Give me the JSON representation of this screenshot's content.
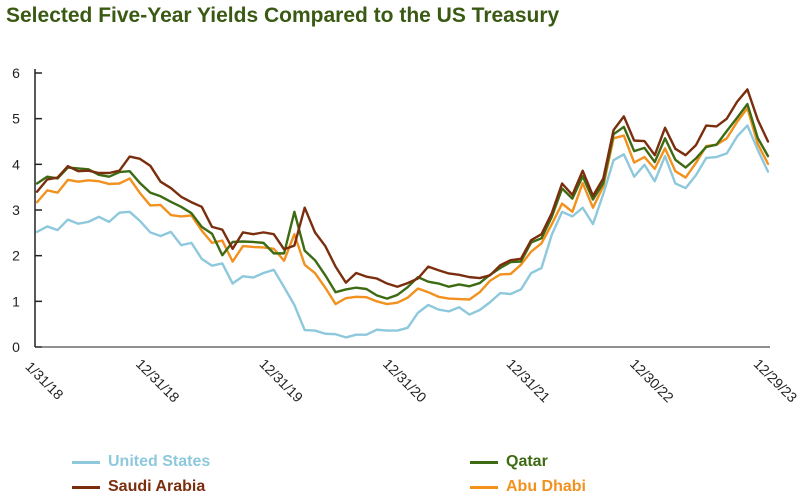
{
  "title": "Selected Five-Year Yields Compared to the US Treasury",
  "colors": {
    "title": "#3a5a14",
    "axis": "#222222",
    "tick_text": "#222222"
  },
  "chart_data": {
    "type": "line",
    "title": "Selected Five-Year Yields Compared to the US Treasury",
    "xlabel": "",
    "ylabel": "",
    "ylim": [
      0,
      6
    ],
    "yticks": [
      0,
      1,
      2,
      3,
      4,
      5,
      6
    ],
    "grid": false,
    "legend_position": "bottom",
    "x_tick_labels": [
      "1/31/18",
      "12/31/18",
      "12/31/19",
      "12/31/20",
      "12/31/21",
      "12/30/22",
      "12/29/23"
    ],
    "x_tick_index": [
      0,
      11,
      23,
      35,
      47,
      59,
      71
    ],
    "series": [
      {
        "name": "United States",
        "color": "#8ec8dc",
        "values": [
          2.52,
          2.64,
          2.56,
          2.79,
          2.7,
          2.74,
          2.85,
          2.74,
          2.94,
          2.96,
          2.76,
          2.51,
          2.43,
          2.52,
          2.23,
          2.28,
          1.93,
          1.78,
          1.83,
          1.39,
          1.55,
          1.52,
          1.62,
          1.69,
          1.31,
          0.92,
          0.37,
          0.36,
          0.29,
          0.28,
          0.21,
          0.27,
          0.27,
          0.38,
          0.36,
          0.36,
          0.42,
          0.75,
          0.92,
          0.82,
          0.78,
          0.87,
          0.71,
          0.81,
          0.98,
          1.18,
          1.16,
          1.26,
          1.62,
          1.73,
          2.46,
          2.96,
          2.86,
          3.05,
          2.69,
          3.35,
          4.09,
          4.22,
          3.73,
          3.99,
          3.63,
          4.18,
          3.58,
          3.48,
          3.76,
          4.14,
          4.16,
          4.24,
          4.61,
          4.85,
          4.32,
          3.84
        ]
      },
      {
        "name": "Qatar",
        "color": "#3d6b13",
        "values": [
          3.58,
          3.73,
          3.69,
          3.93,
          3.91,
          3.89,
          3.77,
          3.73,
          3.83,
          3.85,
          3.59,
          3.38,
          3.3,
          3.18,
          3.07,
          2.93,
          2.63,
          2.48,
          2.01,
          2.3,
          2.31,
          2.3,
          2.28,
          2.05,
          2.05,
          2.96,
          2.11,
          1.9,
          1.57,
          1.2,
          1.26,
          1.3,
          1.27,
          1.13,
          1.06,
          1.14,
          1.31,
          1.53,
          1.43,
          1.39,
          1.32,
          1.37,
          1.33,
          1.4,
          1.58,
          1.73,
          1.86,
          1.87,
          2.29,
          2.38,
          2.85,
          3.47,
          3.25,
          3.74,
          3.23,
          3.59,
          4.66,
          4.82,
          4.29,
          4.36,
          4.05,
          4.57,
          4.1,
          3.93,
          4.13,
          4.38,
          4.43,
          4.73,
          5.02,
          5.32,
          4.58,
          4.18
        ]
      },
      {
        "name": "Saudi Arabia",
        "color": "#7a2e0e",
        "values": [
          3.4,
          3.67,
          3.71,
          3.96,
          3.85,
          3.86,
          3.81,
          3.81,
          3.86,
          4.17,
          4.12,
          3.97,
          3.62,
          3.48,
          3.29,
          3.17,
          3.07,
          2.63,
          2.57,
          2.15,
          2.51,
          2.47,
          2.51,
          2.47,
          2.14,
          2.22,
          3.05,
          2.51,
          2.21,
          1.76,
          1.41,
          1.62,
          1.54,
          1.5,
          1.39,
          1.32,
          1.4,
          1.5,
          1.76,
          1.68,
          1.61,
          1.58,
          1.53,
          1.51,
          1.57,
          1.79,
          1.9,
          1.93,
          2.34,
          2.47,
          2.93,
          3.58,
          3.33,
          3.86,
          3.31,
          3.69,
          4.75,
          5.05,
          4.52,
          4.51,
          4.2,
          4.8,
          4.34,
          4.2,
          4.42,
          4.85,
          4.83,
          5.0,
          5.37,
          5.64,
          4.98,
          4.5
        ]
      },
      {
        "name": "Abu Dhabi",
        "color": "#f2911e",
        "values": [
          3.17,
          3.43,
          3.38,
          3.66,
          3.62,
          3.65,
          3.63,
          3.57,
          3.58,
          3.69,
          3.37,
          3.1,
          3.11,
          2.89,
          2.86,
          2.88,
          2.55,
          2.28,
          2.33,
          1.87,
          2.21,
          2.19,
          2.18,
          2.15,
          1.89,
          2.47,
          1.8,
          1.62,
          1.3,
          0.94,
          1.07,
          1.1,
          1.09,
          1.0,
          0.94,
          0.97,
          1.08,
          1.28,
          1.2,
          1.1,
          1.06,
          1.05,
          1.04,
          1.2,
          1.45,
          1.59,
          1.6,
          1.8,
          2.09,
          2.27,
          2.69,
          3.14,
          2.96,
          3.59,
          3.05,
          3.52,
          4.57,
          4.63,
          4.04,
          4.16,
          3.9,
          4.35,
          3.85,
          3.71,
          4.03,
          4.4,
          4.43,
          4.57,
          4.93,
          5.23,
          4.45,
          4.01
        ]
      }
    ]
  },
  "legend": [
    {
      "label": "United States",
      "color": "#8ec8dc"
    },
    {
      "label": "Qatar",
      "color": "#3d6b13"
    },
    {
      "label": "Saudi Arabia",
      "color": "#7a2e0e"
    },
    {
      "label": "Abu Dhabi",
      "color": "#f2911e"
    }
  ]
}
